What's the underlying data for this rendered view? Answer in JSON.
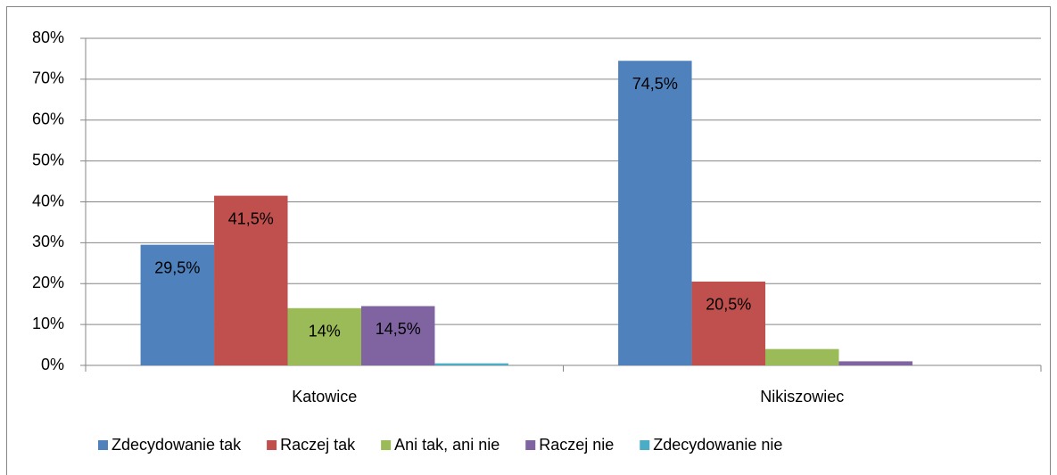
{
  "chart_data": {
    "type": "bar",
    "categories": [
      "Katowice",
      "Nikiszowiec"
    ],
    "series": [
      {
        "name": "Zdecydowanie tak",
        "color": "#4f81bd",
        "values": [
          29.5,
          74.5
        ],
        "value_labels": [
          "29,5%",
          "74,5%"
        ]
      },
      {
        "name": "Raczej tak",
        "color": "#c0504d",
        "values": [
          41.5,
          20.5
        ],
        "value_labels": [
          "41,5%",
          "20,5%"
        ]
      },
      {
        "name": "Ani tak, ani nie",
        "color": "#9bbb59",
        "values": [
          14,
          4
        ],
        "value_labels": [
          "14%",
          null
        ]
      },
      {
        "name": "Raczej nie",
        "color": "#8064a2",
        "values": [
          14.5,
          1
        ],
        "value_labels": [
          "14,5%",
          null
        ]
      },
      {
        "name": "Zdecydowanie nie",
        "color": "#4bacc6",
        "values": [
          0.5,
          0
        ],
        "value_labels": [
          null,
          null
        ]
      }
    ],
    "ylim": [
      0,
      80
    ],
    "yticks": [
      {
        "value": 0,
        "label": "0%"
      },
      {
        "value": 10,
        "label": "10%"
      },
      {
        "value": 20,
        "label": "20%"
      },
      {
        "value": 30,
        "label": "30%"
      },
      {
        "value": 40,
        "label": "40%"
      },
      {
        "value": 50,
        "label": "50%"
      },
      {
        "value": 60,
        "label": "60%"
      },
      {
        "value": 70,
        "label": "70%"
      },
      {
        "value": 80,
        "label": "80%"
      }
    ],
    "grid": true,
    "legend": "bottom"
  }
}
